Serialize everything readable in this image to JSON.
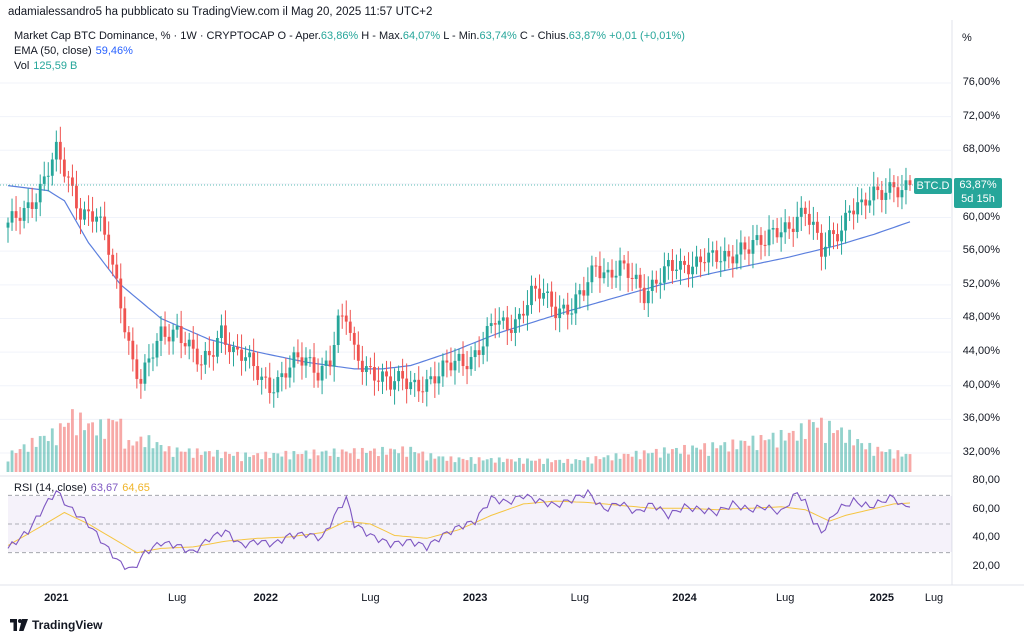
{
  "header": "adamialessandro5 ha pubblicato su TradingView.com il Mag 20, 2025 11:57 UTC+2",
  "scale_label": "%",
  "main_legend": {
    "symbol": "Market Cap BTC Dominance, % · 1W · CRYPTOCAP",
    "o_label": "O - Aper.",
    "o_value": "63,86%",
    "h_label": "H - Max.",
    "h_value": "64,07%",
    "l_label": "L - Min.",
    "l_value": "63,74%",
    "c_label": "C - Chius.",
    "c_value": "63,87%",
    "change": "+0,01 (+0,01%)"
  },
  "ema_legend": {
    "label": "EMA (50, close)",
    "value": "59,46%"
  },
  "vol_legend": {
    "label": "Vol",
    "value": "125,59 B"
  },
  "rsi_legend": {
    "label": "RSI (14, close)",
    "value1": "63,67",
    "value2": "64,65"
  },
  "price_tag": {
    "symbol": "BTC.D",
    "value": "63,87%",
    "countdown": "5d 15h"
  },
  "footer": {
    "brand": "TradingView",
    "logo_icon": "tradingview-logo-icon"
  },
  "colors": {
    "up": "#26a69a",
    "down": "#ef5350",
    "ema": "#5b7fde",
    "rsi": "#7e57c2",
    "rsi_ma": "#f5c542"
  },
  "chart_data": [
    {
      "type": "candlestick",
      "title": "Market Cap BTC Dominance, % · 1W · CRYPTOCAP",
      "ylabel": "%",
      "ylim": [
        30,
        80
      ],
      "yticks": [
        "76,00%",
        "72,00%",
        "68,00%",
        "64,00%",
        "60,00%",
        "56,00%",
        "52,00%",
        "48,00%",
        "44,00%",
        "40,00%",
        "36,00%",
        "32,00%"
      ],
      "xticks": [
        "2021",
        "Lug",
        "2022",
        "Lug",
        "2023",
        "Lug",
        "2024",
        "Lug",
        "2025",
        "Lug"
      ],
      "last_close": 63.87,
      "series": [
        {
          "name": "EMA (50, close)",
          "anchors": [
            [
              0,
              63.8
            ],
            [
              10,
              63.2
            ],
            [
              14,
              62.0
            ],
            [
              20,
              57.0
            ],
            [
              28,
              52.0
            ],
            [
              38,
              48.0
            ],
            [
              50,
              45.5
            ],
            [
              62,
              44.0
            ],
            [
              74,
              42.8
            ],
            [
              86,
              42.0
            ],
            [
              93,
              42.0
            ],
            [
              100,
              42.4
            ],
            [
              110,
              44.0
            ],
            [
              122,
              46.3
            ],
            [
              140,
              49.0
            ],
            [
              162,
              52.0
            ],
            [
              176,
              53.5
            ],
            [
              194,
              55.3
            ],
            [
              206,
              56.7
            ],
            [
              215,
              58.0
            ],
            [
              224,
              59.5
            ]
          ]
        },
        {
          "name": "BTC.D close",
          "anchors": [
            [
              0,
              58.8
            ],
            [
              4,
              61.0
            ],
            [
              8,
              63.5
            ],
            [
              12,
              67.5
            ],
            [
              15,
              64.5
            ],
            [
              18,
              61.0
            ],
            [
              22,
              60.0
            ],
            [
              25,
              56.0
            ],
            [
              28,
              50.0
            ],
            [
              31,
              43.0
            ],
            [
              33,
              40.5
            ],
            [
              35,
              42.5
            ],
            [
              38,
              46.0
            ],
            [
              42,
              47.0
            ],
            [
              45,
              44.5
            ],
            [
              48,
              42.0
            ],
            [
              51,
              44.5
            ],
            [
              53,
              47.0
            ],
            [
              56,
              44.0
            ],
            [
              59,
              43.0
            ],
            [
              62,
              41.5
            ],
            [
              65,
              40.2
            ],
            [
              68,
              41.0
            ],
            [
              71,
              42.5
            ],
            [
              74,
              43.2
            ],
            [
              77,
              42.0
            ],
            [
              80,
              43.0
            ],
            [
              82,
              47.0
            ],
            [
              84,
              48.0
            ],
            [
              86,
              44.0
            ],
            [
              89,
              42.5
            ],
            [
              92,
              41.0
            ],
            [
              95,
              39.8
            ],
            [
              98,
              41.0
            ],
            [
              101,
              40.5
            ],
            [
              104,
              40.0
            ],
            [
              107,
              40.8
            ],
            [
              109,
              42.5
            ],
            [
              112,
              43.5
            ],
            [
              115,
              43.0
            ],
            [
              118,
              44.5
            ],
            [
              121,
              48.0
            ],
            [
              124,
              47.5
            ],
            [
              127,
              48.0
            ],
            [
              130,
              50.5
            ],
            [
              133,
              51.0
            ],
            [
              136,
              49.5
            ],
            [
              140,
              49.0
            ],
            [
              143,
              51.0
            ],
            [
              146,
              54.5
            ],
            [
              149,
              53.5
            ],
            [
              152,
              54.0
            ],
            [
              155,
              52.5
            ],
            [
              158,
              51.0
            ],
            [
              161,
              53.0
            ],
            [
              164,
              54.0
            ],
            [
              167,
              53.5
            ],
            [
              170,
              54.5
            ],
            [
              173,
              56.0
            ],
            [
              176,
              55.0
            ],
            [
              179,
              54.5
            ],
            [
              182,
              56.5
            ],
            [
              185,
              57.5
            ],
            [
              188,
              57.0
            ],
            [
              191,
              58.0
            ],
            [
              194,
              59.0
            ],
            [
              196,
              60.5
            ],
            [
              198,
              61.0
            ],
            [
              200,
              58.5
            ],
            [
              202,
              55.5
            ],
            [
              204,
              57.5
            ],
            [
              207,
              59.0
            ],
            [
              209,
              61.5
            ],
            [
              212,
              61.0
            ],
            [
              215,
              62.5
            ],
            [
              218,
              63.5
            ],
            [
              220,
              64.3
            ],
            [
              222,
              63.0
            ],
            [
              224,
              63.87
            ]
          ]
        }
      ]
    },
    {
      "type": "line",
      "title": "RSI (14, close)",
      "ylim": [
        15,
        82
      ],
      "yticks": [
        "80,00",
        "60,00",
        "40,00",
        "20,00"
      ],
      "bands": [
        70,
        50,
        30
      ],
      "series": [
        {
          "name": "RSI",
          "anchors": [
            [
              0,
              33
            ],
            [
              5,
              45
            ],
            [
              9,
              62
            ],
            [
              12,
              73
            ],
            [
              15,
              62
            ],
            [
              20,
              50
            ],
            [
              25,
              32
            ],
            [
              28,
              22
            ],
            [
              31,
              18
            ],
            [
              34,
              30
            ],
            [
              38,
              37
            ],
            [
              42,
              35
            ],
            [
              46,
              30
            ],
            [
              50,
              40
            ],
            [
              54,
              45
            ],
            [
              58,
              35
            ],
            [
              62,
              38
            ],
            [
              66,
              36
            ],
            [
              70,
              42
            ],
            [
              74,
              43
            ],
            [
              78,
              40
            ],
            [
              82,
              60
            ],
            [
              84,
              68
            ],
            [
              86,
              50
            ],
            [
              90,
              42
            ],
            [
              95,
              36
            ],
            [
              100,
              38
            ],
            [
              104,
              34
            ],
            [
              108,
              42
            ],
            [
              112,
              48
            ],
            [
              116,
              52
            ],
            [
              120,
              68
            ],
            [
              124,
              65
            ],
            [
              128,
              70
            ],
            [
              132,
              66
            ],
            [
              136,
              63
            ],
            [
              140,
              67
            ],
            [
              144,
              72
            ],
            [
              148,
              60
            ],
            [
              152,
              65
            ],
            [
              156,
              58
            ],
            [
              160,
              64
            ],
            [
              164,
              56
            ],
            [
              168,
              62
            ],
            [
              172,
              60
            ],
            [
              176,
              58
            ],
            [
              180,
              64
            ],
            [
              184,
              60
            ],
            [
              188,
              62
            ],
            [
              192,
              58
            ],
            [
              196,
              72
            ],
            [
              198,
              65
            ],
            [
              200,
              52
            ],
            [
              202,
              44
            ],
            [
              204,
              52
            ],
            [
              206,
              60
            ],
            [
              210,
              66
            ],
            [
              214,
              62
            ],
            [
              218,
              67
            ],
            [
              220,
              69
            ],
            [
              222,
              62
            ],
            [
              224,
              63.67
            ]
          ]
        },
        {
          "name": "RSI MA",
          "anchors": [
            [
              0,
              35
            ],
            [
              8,
              48
            ],
            [
              14,
              58
            ],
            [
              20,
              50
            ],
            [
              26,
              40
            ],
            [
              32,
              30
            ],
            [
              38,
              33
            ],
            [
              46,
              34
            ],
            [
              54,
              38
            ],
            [
              62,
              40
            ],
            [
              70,
              41
            ],
            [
              78,
              44
            ],
            [
              84,
              52
            ],
            [
              90,
              50
            ],
            [
              96,
              42
            ],
            [
              104,
              40
            ],
            [
              112,
              46
            ],
            [
              120,
              56
            ],
            [
              128,
              64
            ],
            [
              136,
              66
            ],
            [
              144,
              65
            ],
            [
              152,
              63
            ],
            [
              160,
              61
            ],
            [
              168,
              61
            ],
            [
              176,
              60
            ],
            [
              184,
              61
            ],
            [
              192,
              62
            ],
            [
              198,
              60
            ],
            [
              204,
              52
            ],
            [
              208,
              56
            ],
            [
              214,
              60
            ],
            [
              220,
              64
            ],
            [
              224,
              64.65
            ]
          ]
        }
      ]
    },
    {
      "type": "bar",
      "title": "Vol",
      "last_value": "125,59 B",
      "profile": [
        [
          0,
          0.15
        ],
        [
          8,
          0.3
        ],
        [
          12,
          0.35
        ],
        [
          16,
          0.5
        ],
        [
          20,
          0.42
        ],
        [
          24,
          0.4
        ],
        [
          27,
          0.5
        ],
        [
          30,
          0.25
        ],
        [
          34,
          0.3
        ],
        [
          40,
          0.2
        ],
        [
          60,
          0.15
        ],
        [
          80,
          0.18
        ],
        [
          100,
          0.2
        ],
        [
          104,
          0.15
        ],
        [
          110,
          0.12
        ],
        [
          140,
          0.1
        ],
        [
          160,
          0.18
        ],
        [
          180,
          0.25
        ],
        [
          196,
          0.35
        ],
        [
          200,
          0.45
        ],
        [
          204,
          0.4
        ],
        [
          208,
          0.35
        ],
        [
          212,
          0.25
        ],
        [
          216,
          0.2
        ],
        [
          224,
          0.15
        ]
      ]
    }
  ]
}
